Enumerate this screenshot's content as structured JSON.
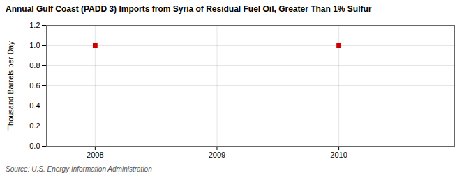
{
  "chart_data": {
    "type": "scatter",
    "title": "Annual Gulf Coast (PADD 3) Imports from Syria of Residual Fuel Oil, Greater Than 1% Sulfur",
    "ylabel": "Thousand Barrels per Day",
    "caption": "Source: U.S. Energy Information Administration",
    "x": [
      2008,
      2010
    ],
    "values": [
      1.0,
      1.0
    ],
    "color": "#cc0000",
    "marker": "square",
    "xlim": [
      2007.6,
      2010.95
    ],
    "xticks": [
      2008,
      2009,
      2010
    ],
    "ylim": [
      0.0,
      1.2
    ],
    "yticks": [
      {
        "value": 0.0,
        "label": "0.0"
      },
      0.2,
      0.4,
      0.6,
      0.8,
      {
        "value": 1.0,
        "label": "1.0"
      },
      1.2
    ],
    "grid": true
  }
}
